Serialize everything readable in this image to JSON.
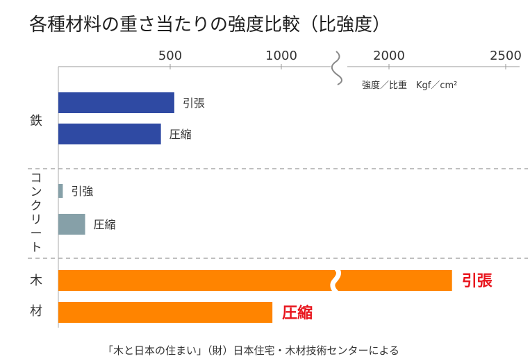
{
  "chart_data": {
    "type": "bar",
    "orientation": "horizontal",
    "title": "各種材料の重さ当たりの強度比較（比強度）",
    "unit_label": "強度／比重　Kgf／cm²",
    "x_ticks": [
      500,
      1000,
      2000,
      2500
    ],
    "axis_break": "between 1000 and 2000",
    "groups": [
      {
        "label": "鉄",
        "bars": [
          {
            "label": "引張",
            "value": 520,
            "color": "#2f4aa3"
          },
          {
            "label": "圧縮",
            "value": 460,
            "color": "#2f4aa3"
          }
        ]
      },
      {
        "label": "コンクリート",
        "bars": [
          {
            "label": "引強",
            "value": 20,
            "color": "#86a0a8"
          },
          {
            "label": "圧縮",
            "value": 120,
            "color": "#86a0a8"
          }
        ]
      },
      {
        "label": "木材",
        "bars": [
          {
            "label": "引張",
            "value": 2270,
            "color": "#ff8400",
            "broken": true,
            "label_color": "#e8141c"
          },
          {
            "label": "圧縮",
            "value": 960,
            "color": "#ff8400",
            "label_color": "#e8141c"
          }
        ]
      }
    ],
    "group_separator": "dashed",
    "source": "「木と日本の住まい」（財）日本住宅・木材技術センターによる"
  }
}
